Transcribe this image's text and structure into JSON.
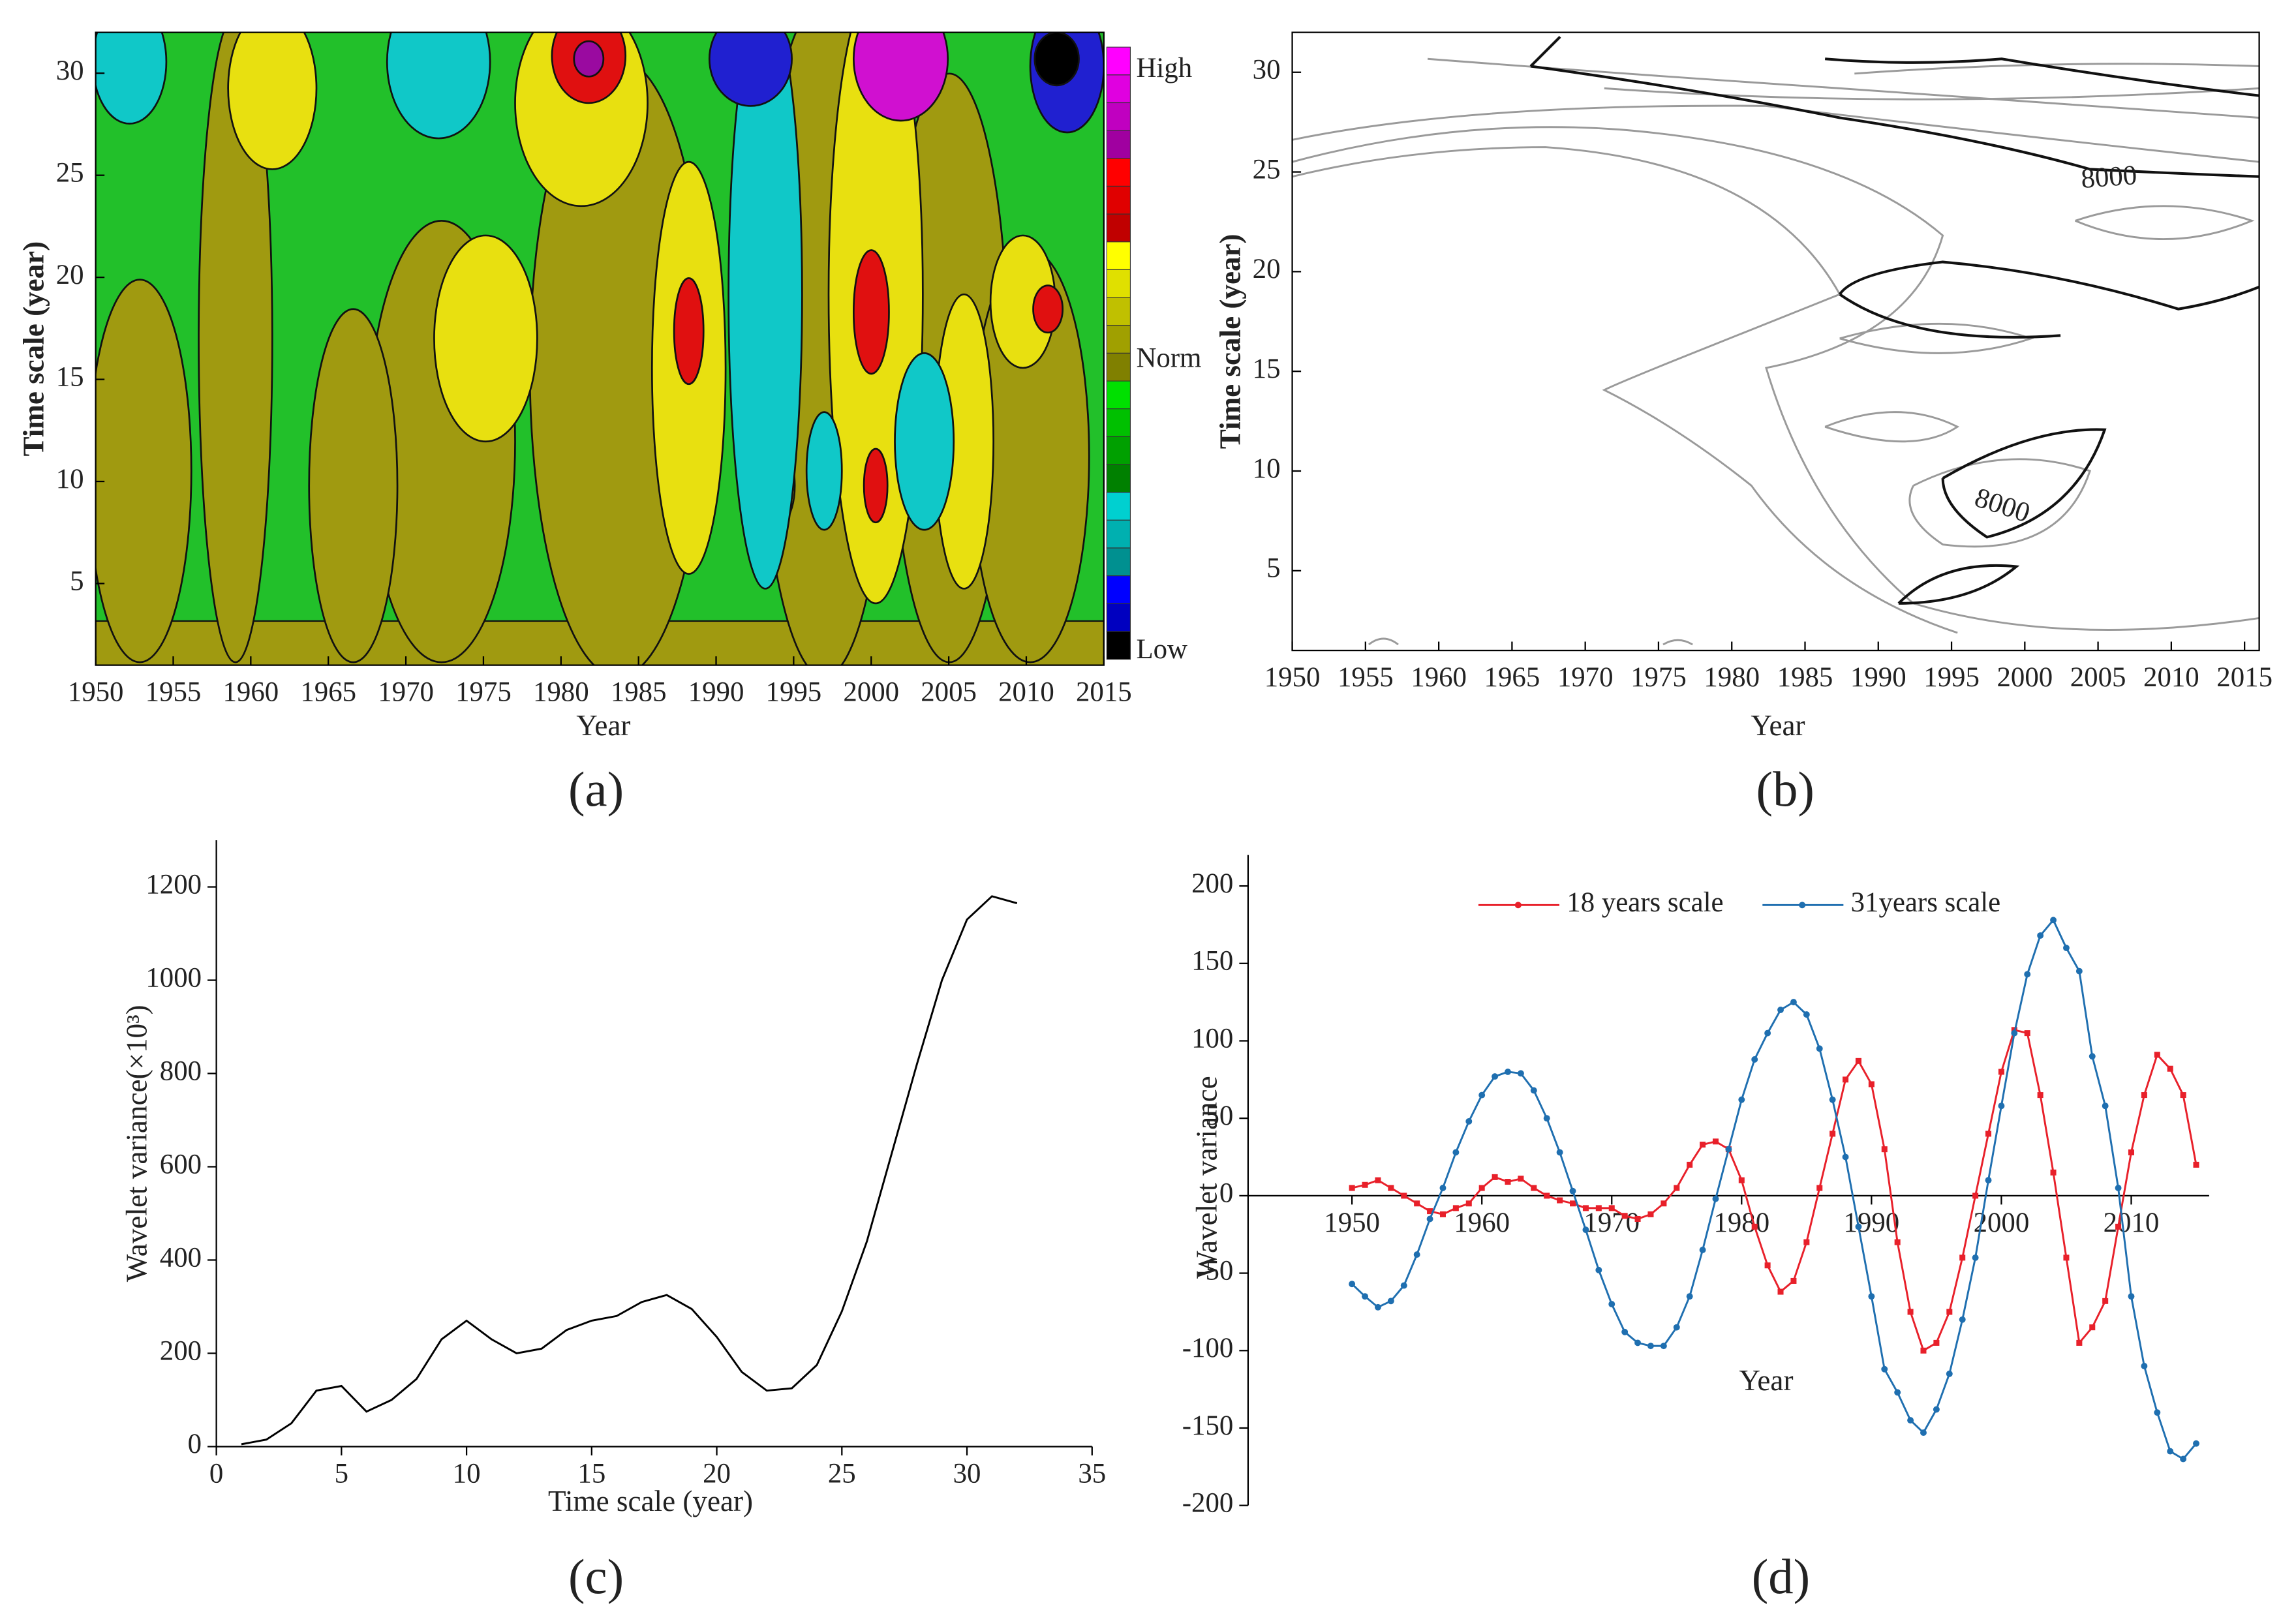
{
  "chart_data": [
    {
      "type": "contour",
      "caption": "(a)",
      "x_label": "Year",
      "y_label": "Time scale (year)",
      "xlim": [
        1950,
        2015
      ],
      "xticks": [
        1950,
        1955,
        1960,
        1965,
        1970,
        1975,
        1980,
        1985,
        1990,
        1995,
        2000,
        2005,
        2010,
        2015
      ],
      "ylim": [
        1,
        32
      ],
      "yticks": [
        5,
        10,
        15,
        20,
        25,
        30
      ],
      "colorbar_labels": [
        "High",
        "Norm",
        "Low"
      ]
    },
    {
      "type": "contour_lines",
      "caption": "(b)",
      "x_label": "Year",
      "y_label": "Time scale (year)",
      "xlim": [
        1950,
        2016
      ],
      "xticks": [
        1950,
        1955,
        1960,
        1965,
        1970,
        1975,
        1980,
        1985,
        1990,
        1995,
        2000,
        2005,
        2010,
        2015
      ],
      "ylim": [
        1,
        32
      ],
      "yticks": [
        5,
        10,
        15,
        20,
        25,
        30
      ],
      "annotations": [
        "8000",
        "8000"
      ]
    },
    {
      "type": "line",
      "caption": "(c)",
      "x_label": "Time scale (year)",
      "y_label": "Wavelet variance(×10³)",
      "x": [
        1,
        2,
        3,
        4,
        5,
        6,
        7,
        8,
        9,
        10,
        11,
        12,
        13,
        14,
        15,
        16,
        17,
        18,
        19,
        20,
        21,
        22,
        23,
        24,
        25,
        26,
        27,
        28,
        29,
        30,
        31,
        32
      ],
      "values": [
        5,
        15,
        50,
        120,
        130,
        75,
        100,
        145,
        230,
        270,
        230,
        200,
        210,
        250,
        270,
        280,
        310,
        325,
        295,
        235,
        160,
        120,
        125,
        175,
        290,
        440,
        630,
        820,
        1000,
        1130,
        1180,
        1165
      ],
      "color": "#000000",
      "xlim": [
        0,
        35
      ],
      "xticks": [
        0,
        5,
        10,
        15,
        20,
        25,
        30,
        35
      ],
      "ylim": [
        0,
        1300
      ],
      "yticks": [
        0,
        200,
        400,
        600,
        800,
        1000,
        1200
      ]
    },
    {
      "type": "line",
      "caption": "(d)",
      "x_label": "Year",
      "y_label": "Wavelet variance",
      "legend": "top",
      "x": [
        1950,
        1951,
        1952,
        1953,
        1954,
        1955,
        1956,
        1957,
        1958,
        1959,
        1960,
        1961,
        1962,
        1963,
        1964,
        1965,
        1966,
        1967,
        1968,
        1969,
        1970,
        1971,
        1972,
        1973,
        1974,
        1975,
        1976,
        1977,
        1978,
        1979,
        1980,
        1981,
        1982,
        1983,
        1984,
        1985,
        1986,
        1987,
        1988,
        1989,
        1990,
        1991,
        1992,
        1993,
        1994,
        1995,
        1996,
        1997,
        1998,
        1999,
        2000,
        2001,
        2002,
        2003,
        2004,
        2005,
        2006,
        2007,
        2008,
        2009,
        2010,
        2011,
        2012,
        2013,
        2014,
        2015
      ],
      "series": [
        {
          "name": "18 years scale",
          "color": "#e8202a",
          "marker": "square",
          "values": [
            5,
            7,
            10,
            5,
            0,
            -5,
            -10,
            -12,
            -8,
            -5,
            5,
            12,
            9,
            11,
            5,
            0,
            -3,
            -5,
            -8,
            -8,
            -8,
            -13,
            -15,
            -12,
            -5,
            5,
            20,
            33,
            35,
            30,
            10,
            -20,
            -45,
            -62,
            -55,
            -30,
            5,
            40,
            75,
            87,
            72,
            30,
            -30,
            -75,
            -100,
            -95,
            -75,
            -40,
            0,
            40,
            80,
            107,
            105,
            65,
            15,
            -40,
            -95,
            -85,
            -68,
            -20,
            28,
            65,
            91,
            82,
            65,
            20
          ]
        },
        {
          "name": "31years scale",
          "color": "#1f6fb0",
          "marker": "circle",
          "values": [
            -57,
            -65,
            -72,
            -68,
            -58,
            -38,
            -15,
            5,
            28,
            48,
            65,
            77,
            80,
            79,
            68,
            50,
            28,
            3,
            -22,
            -48,
            -70,
            -88,
            -95,
            -97,
            -97,
            -85,
            -65,
            -35,
            -2,
            30,
            62,
            88,
            105,
            120,
            125,
            117,
            95,
            62,
            25,
            -20,
            -65,
            -112,
            -127,
            -145,
            -153,
            -138,
            -115,
            -80,
            -40,
            10,
            58,
            105,
            143,
            168,
            178,
            160,
            145,
            90,
            58,
            5,
            -65,
            -110,
            -140,
            -165,
            -170,
            -160
          ]
        }
      ],
      "xlim": [
        1942,
        2016
      ],
      "xticks": [
        1950,
        1960,
        1970,
        1980,
        1990,
        2000,
        2010
      ],
      "ylim": [
        -200,
        220
      ],
      "yticks": [
        -200,
        -150,
        -100,
        -50,
        0,
        50,
        100,
        150,
        200
      ]
    }
  ]
}
